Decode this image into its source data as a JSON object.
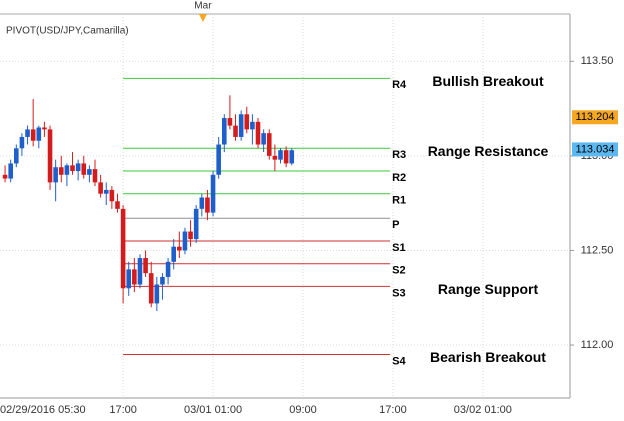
{
  "chart_data": {
    "type": "candlestick",
    "indicator": "PIVOT(USD/JPY,Camarilla)",
    "up_color": "#1f5fcc",
    "down_color": "#d41c1c",
    "grid": true,
    "ylim": [
      111.72,
      113.75
    ],
    "yticks": [
      {
        "value": 113.5,
        "label": "113.50"
      },
      {
        "value": 113.0,
        "label": "113.00"
      },
      {
        "value": 112.5,
        "label": "112.50"
      },
      {
        "value": 112.0,
        "label": "112.00"
      }
    ],
    "xlim": [
      -0.9,
      100.5
    ],
    "xticks": [
      {
        "value": -2,
        "label": "02/29/2016 05:30"
      },
      {
        "value": 21,
        "label": "17:00"
      },
      {
        "value": 37,
        "label": "03/01 01:00"
      },
      {
        "value": 53,
        "label": "09:00"
      },
      {
        "value": 69,
        "label": "17:00"
      },
      {
        "value": 85,
        "label": "03/02 01:00"
      }
    ],
    "top_marker": {
      "value": 35.2,
      "label": "Mar"
    },
    "open": [
      112.9,
      112.88,
      112.96,
      113.04,
      113.1,
      113.14,
      113.08,
      113.15,
      113.14,
      112.86,
      112.94,
      112.9,
      112.95,
      112.92,
      112.96,
      112.9,
      112.93,
      112.86,
      112.8,
      112.82,
      112.76,
      112.72,
      112.3,
      112.4,
      112.32,
      112.46,
      112.38,
      112.22,
      112.32,
      112.36,
      112.44,
      112.52,
      112.5,
      112.6,
      112.56,
      112.72,
      112.78,
      112.7,
      112.9,
      113.06,
      113.2,
      113.16,
      113.1,
      113.22,
      113.14,
      113.18,
      113.06,
      113.12,
      113.0,
      112.98,
      113.03,
      112.96
    ],
    "high": [
      112.95,
      112.98,
      113.06,
      113.12,
      113.16,
      113.3,
      113.16,
      113.18,
      113.16,
      112.98,
      113.0,
      112.96,
      113.02,
      112.98,
      113.0,
      112.95,
      112.98,
      112.9,
      112.86,
      112.84,
      112.8,
      112.74,
      112.44,
      112.46,
      112.48,
      112.5,
      112.44,
      112.36,
      112.38,
      112.46,
      112.56,
      112.6,
      112.62,
      112.66,
      112.74,
      112.8,
      112.82,
      112.92,
      113.1,
      113.22,
      113.32,
      113.22,
      113.24,
      113.26,
      113.22,
      113.2,
      113.14,
      113.14,
      113.06,
      113.04,
      113.05,
      113.04
    ],
    "low": [
      112.86,
      112.86,
      112.94,
      113.0,
      113.06,
      113.05,
      113.04,
      113.1,
      112.82,
      112.76,
      112.86,
      112.84,
      112.9,
      112.87,
      112.88,
      112.86,
      112.84,
      112.78,
      112.74,
      112.72,
      112.7,
      112.22,
      112.26,
      112.28,
      112.3,
      112.36,
      112.2,
      112.18,
      112.24,
      112.32,
      112.4,
      112.46,
      112.48,
      112.52,
      112.54,
      112.68,
      112.66,
      112.68,
      112.88,
      113.02,
      113.14,
      113.08,
      113.08,
      113.12,
      113.06,
      113.04,
      113.02,
      112.98,
      112.92,
      112.96,
      112.94,
      112.95
    ],
    "close": [
      112.88,
      112.96,
      113.04,
      113.1,
      113.14,
      113.08,
      113.15,
      113.14,
      112.86,
      112.94,
      112.9,
      112.95,
      112.92,
      112.96,
      112.9,
      112.93,
      112.86,
      112.8,
      112.82,
      112.76,
      112.72,
      112.3,
      112.4,
      112.32,
      112.46,
      112.38,
      112.22,
      112.32,
      112.36,
      112.44,
      112.52,
      112.5,
      112.6,
      112.56,
      112.72,
      112.78,
      112.7,
      112.9,
      113.06,
      113.2,
      113.16,
      113.1,
      113.22,
      113.14,
      113.18,
      113.06,
      113.12,
      113.0,
      112.98,
      113.03,
      112.96,
      113.03
    ],
    "pivot_range": [
      21,
      68.5
    ],
    "pivots": [
      {
        "name": "R4",
        "value": 113.41,
        "color": "#3cc83c"
      },
      {
        "name": "R3",
        "value": 113.04,
        "color": "#3cc83c"
      },
      {
        "name": "R2",
        "value": 112.92,
        "color": "#3cc83c"
      },
      {
        "name": "R1",
        "value": 112.8,
        "color": "#3cc83c"
      },
      {
        "name": "P",
        "value": 112.67,
        "color": "#909090"
      },
      {
        "name": "S1",
        "value": 112.55,
        "color": "#cc3030"
      },
      {
        "name": "S2",
        "value": 112.43,
        "color": "#cc3030"
      },
      {
        "name": "S3",
        "value": 112.31,
        "color": "#cc3030"
      },
      {
        "name": "S4",
        "value": 111.95,
        "color": "#cc3030"
      }
    ],
    "annotations": [
      {
        "text": "Bullish Breakout",
        "pivot": "R4"
      },
      {
        "text": "Range Resistance",
        "pivot": "R3"
      },
      {
        "text": "Range Support",
        "pivot": "S3"
      },
      {
        "text": "Bearish Breakout",
        "pivot": "S4"
      }
    ],
    "price_labels": [
      {
        "value": 113.204,
        "color": "#f5a623"
      },
      {
        "value": 113.034,
        "color": "#5bb8f0"
      }
    ]
  }
}
